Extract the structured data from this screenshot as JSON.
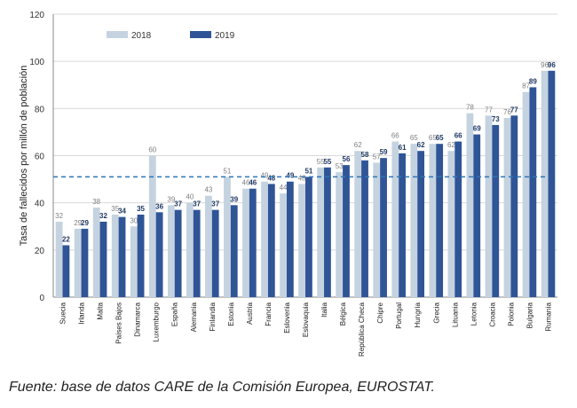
{
  "chart_data": {
    "type": "bar",
    "ylabel": "Tasa de fallecidos por millón de población",
    "ylim": [
      0,
      120
    ],
    "yticks": [
      0,
      20,
      40,
      60,
      80,
      100,
      120
    ],
    "grid": true,
    "legend_position": "top-left",
    "reference_line": {
      "value": 51,
      "style": "dashed",
      "color": "#2e75b6"
    },
    "categories": [
      "Suecia",
      "Irlanda",
      "Malta",
      "Países Bajos",
      "Dinamarca",
      "Luxemburgo",
      "España",
      "Alemania",
      "Finlandia",
      "Estonia",
      "Austria",
      "Francia",
      "Eslovenia",
      "Eslovaquia",
      "Italia",
      "Bélgica",
      "República Checa",
      "Chipre",
      "Portugal",
      "Hungría",
      "Grecia",
      "Lituania",
      "Letonia",
      "Croacia",
      "Polonia",
      "Bulgaria",
      "Rumanía"
    ],
    "series": [
      {
        "name": "2018",
        "color": "#c5d3e0",
        "values": [
          32,
          29,
          38,
          35,
          30,
          60,
          39,
          40,
          43,
          51,
          46,
          49,
          44,
          48,
          55,
          53,
          62,
          57,
          66,
          65,
          65,
          62,
          78,
          77,
          76,
          87,
          96
        ]
      },
      {
        "name": "2019",
        "color": "#2f5597",
        "values": [
          22,
          29,
          32,
          34,
          35,
          36,
          37,
          37,
          37,
          39,
          46,
          48,
          49,
          51,
          55,
          56,
          58,
          59,
          61,
          62,
          65,
          66,
          69,
          73,
          77,
          89,
          96
        ]
      }
    ]
  },
  "source_text": "Fuente: base de datos CARE de la Comisión Europea, EUROSTAT."
}
